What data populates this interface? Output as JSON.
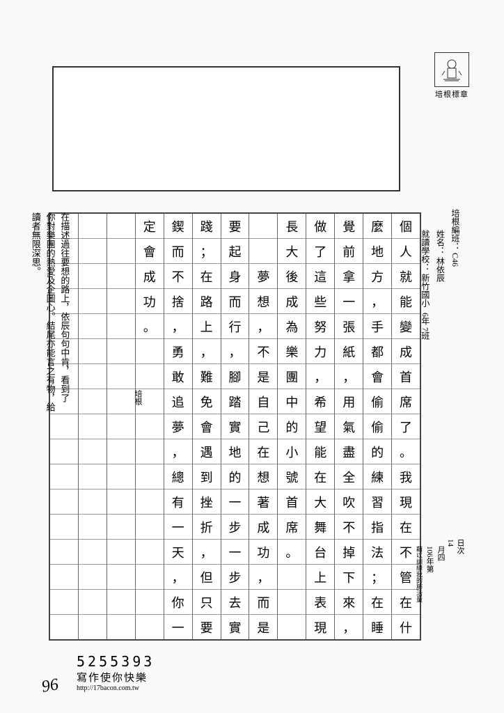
{
  "stamp": {
    "label": "培根標章"
  },
  "header": {
    "id_label": "培根編班：",
    "id_value": "C46",
    "name_label": "姓名：",
    "name_value": "林依辰",
    "school_label": "就讀學校：",
    "school_value": "新竹國小",
    "grade": "6年 7班"
  },
  "right_margin": {
    "date_label": "日次",
    "date_value": "14",
    "month": "月四",
    "year": "106年第",
    "note": "藉以訓練我的肺活量"
  },
  "columns": [
    [
      "個",
      "人",
      "就",
      "能",
      "變",
      "成",
      "首",
      "席",
      "了",
      "。",
      "我",
      "現",
      "在",
      "不",
      "管",
      "在",
      "什"
    ],
    [
      "麼",
      "地",
      "方",
      "，",
      "手",
      "都",
      "會",
      "偷",
      "偷",
      "的",
      "練",
      "習",
      "指",
      "法",
      "；",
      "在",
      "睡"
    ],
    [
      "覺",
      "前",
      "拿",
      "一",
      "張",
      "紙",
      "，",
      "用",
      "氣",
      "盡",
      "全",
      "吹",
      "不",
      "掉",
      "下",
      "來",
      "，"
    ],
    [
      "做",
      "了",
      "這",
      "些",
      "努",
      "力",
      "，",
      "希",
      "望",
      "能",
      "在",
      "大",
      "舞",
      "台",
      "上",
      "表",
      "現",
      "，"
    ],
    [
      "長",
      "大",
      "後",
      "成",
      "為",
      "樂",
      "團",
      "中",
      "的",
      "小",
      "號",
      "首",
      "席",
      "。",
      "",
      "",
      ""
    ],
    [
      "",
      "",
      "夢",
      "想",
      "，",
      "不",
      "是",
      "自",
      "己",
      "在",
      "想",
      "著",
      "成",
      "功",
      "，",
      "而",
      "是"
    ],
    [
      "要",
      "起",
      "身",
      "而",
      "行",
      "，",
      "腳",
      "踏",
      "實",
      "地",
      "的",
      "一",
      "步",
      "一",
      "步",
      "去",
      "實"
    ],
    [
      "踐",
      "；",
      "在",
      "路",
      "上",
      "，",
      "難",
      "免",
      "會",
      "遇",
      "到",
      "挫",
      "折",
      "，",
      "但",
      "只",
      "要"
    ],
    [
      "鍥",
      "而",
      "不",
      "捨",
      "，",
      "勇",
      "敢",
      "追",
      "夢",
      "，",
      "總",
      "有",
      "一",
      "天",
      "，",
      "你",
      "一"
    ],
    [
      "定",
      "會",
      "成",
      "功",
      "。",
      "",
      "",
      "",
      "",
      "",
      "",
      "",
      "",
      "",
      "",
      "",
      "",
      ""
    ],
    [
      "",
      "",
      "",
      "",
      "",
      "",
      "",
      "",
      "",
      "",
      "",
      "",
      "",
      "",
      "",
      "",
      "",
      ""
    ],
    [
      "",
      "",
      "",
      "",
      "",
      "",
      "",
      "",
      "",
      "",
      "",
      "",
      "",
      "",
      "",
      "",
      "",
      ""
    ],
    [
      "",
      "",
      "",
      "",
      "",
      "",
      "",
      "",
      "",
      "",
      "",
      "",
      "",
      "",
      "",
      "",
      "",
      ""
    ]
  ],
  "peigen_mark": "培根",
  "comment": {
    "line1": "你對樂團的熱愛及企圖心。結尾亦能言之有物，給",
    "line2": "在描述過往要想的路上，依辰句句中肯，看到了",
    "line3": "讀者無限深思。"
  },
  "footer": {
    "number": "5255393",
    "slogan": "寫作使你快樂",
    "url": "http://17bacon.com.tw",
    "page": "96"
  }
}
